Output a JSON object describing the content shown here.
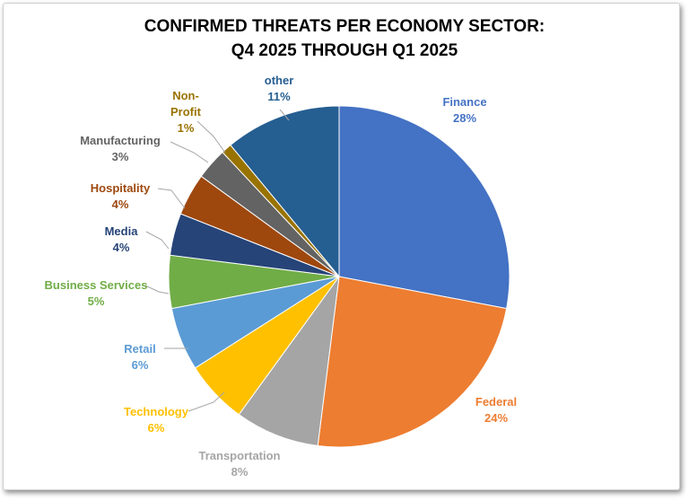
{
  "chart_data": {
    "type": "pie",
    "title_line1": "CONFIRMED THREATS PER ECONOMY SECTOR:",
    "title_line2": "Q4 2025 THROUGH Q1 2025",
    "slices": [
      {
        "label": "Finance",
        "percent_label": "28%",
        "value": 28,
        "color": "#4472C4"
      },
      {
        "label": "Federal",
        "percent_label": "24%",
        "value": 24,
        "color": "#ED7D31"
      },
      {
        "label": "Transportation",
        "percent_label": "8%",
        "value": 8,
        "color": "#A5A5A5"
      },
      {
        "label": "Technology",
        "percent_label": "6%",
        "value": 6,
        "color": "#FFC000"
      },
      {
        "label": "Retail",
        "percent_label": "6%",
        "value": 6,
        "color": "#5B9BD5"
      },
      {
        "label": "Business Services",
        "percent_label": "5%",
        "value": 5,
        "color": "#70AD47"
      },
      {
        "label": "Media",
        "percent_label": "4%",
        "value": 4,
        "color": "#264478"
      },
      {
        "label": "Hospitality",
        "percent_label": "4%",
        "value": 4,
        "color": "#9E480E"
      },
      {
        "label": "Manufacturing",
        "percent_label": "3%",
        "value": 3,
        "color": "#636363"
      },
      {
        "label": "Non-\nProfit",
        "percent_label": "1%",
        "value": 1,
        "color": "#997300"
      },
      {
        "label": "other",
        "percent_label": "11%",
        "value": 11,
        "color": "#255E91"
      }
    ],
    "label_colors": [
      "#4472C4",
      "#ED7D31",
      "#A5A5A5",
      "#FFC000",
      "#5B9BD5",
      "#70AD47",
      "#264478",
      "#9E480E",
      "#636363",
      "#997300",
      "#255E91"
    ]
  }
}
